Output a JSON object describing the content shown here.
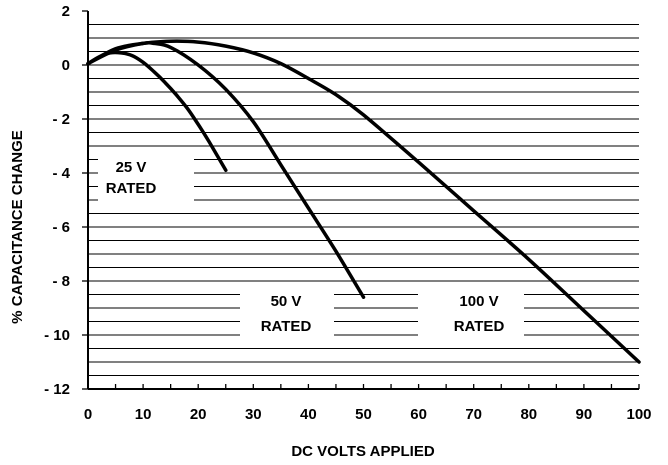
{
  "chart_data": {
    "type": "line",
    "title": "",
    "xlabel": "DC VOLTS APPLIED",
    "ylabel": "% CAPACITANCE CHANGE",
    "xlim": [
      0,
      100
    ],
    "ylim": [
      -12,
      2
    ],
    "grid": "horizontal",
    "x_ticks": [
      "0",
      "10",
      "20",
      "30",
      "40",
      "50",
      "60",
      "70",
      "80",
      "90",
      "100"
    ],
    "y_ticks": [
      "2",
      "0",
      "- 2",
      "- 4",
      "- 6",
      "- 8",
      "- 10",
      "- 12"
    ],
    "series": [
      {
        "label_lines": [
          "25 V",
          "RATED"
        ],
        "x": [
          0,
          2,
          4,
          6,
          8,
          10,
          12,
          14,
          16,
          18,
          20,
          22,
          25
        ],
        "y": [
          0.05,
          0.3,
          0.45,
          0.45,
          0.35,
          0.1,
          -0.25,
          -0.65,
          -1.1,
          -1.6,
          -2.2,
          -2.85,
          -3.9
        ]
      },
      {
        "label_lines": [
          "50 V",
          "RATED"
        ],
        "x": [
          0,
          5,
          10,
          12,
          15,
          20,
          25,
          30,
          35,
          40,
          45,
          50
        ],
        "y": [
          0.05,
          0.6,
          0.8,
          0.8,
          0.65,
          0.0,
          -0.9,
          -2.1,
          -3.7,
          -5.3,
          -6.9,
          -8.6
        ]
      },
      {
        "label_lines": [
          "100 V",
          "RATED"
        ],
        "x": [
          0,
          5,
          10,
          15,
          20,
          25,
          30,
          35,
          40,
          45,
          50,
          60,
          70,
          80,
          90,
          100
        ],
        "y": [
          0.05,
          0.55,
          0.8,
          0.88,
          0.85,
          0.7,
          0.45,
          0.05,
          -0.5,
          -1.1,
          -1.85,
          -3.6,
          -5.4,
          -7.2,
          -9.1,
          -11.0
        ]
      }
    ]
  }
}
